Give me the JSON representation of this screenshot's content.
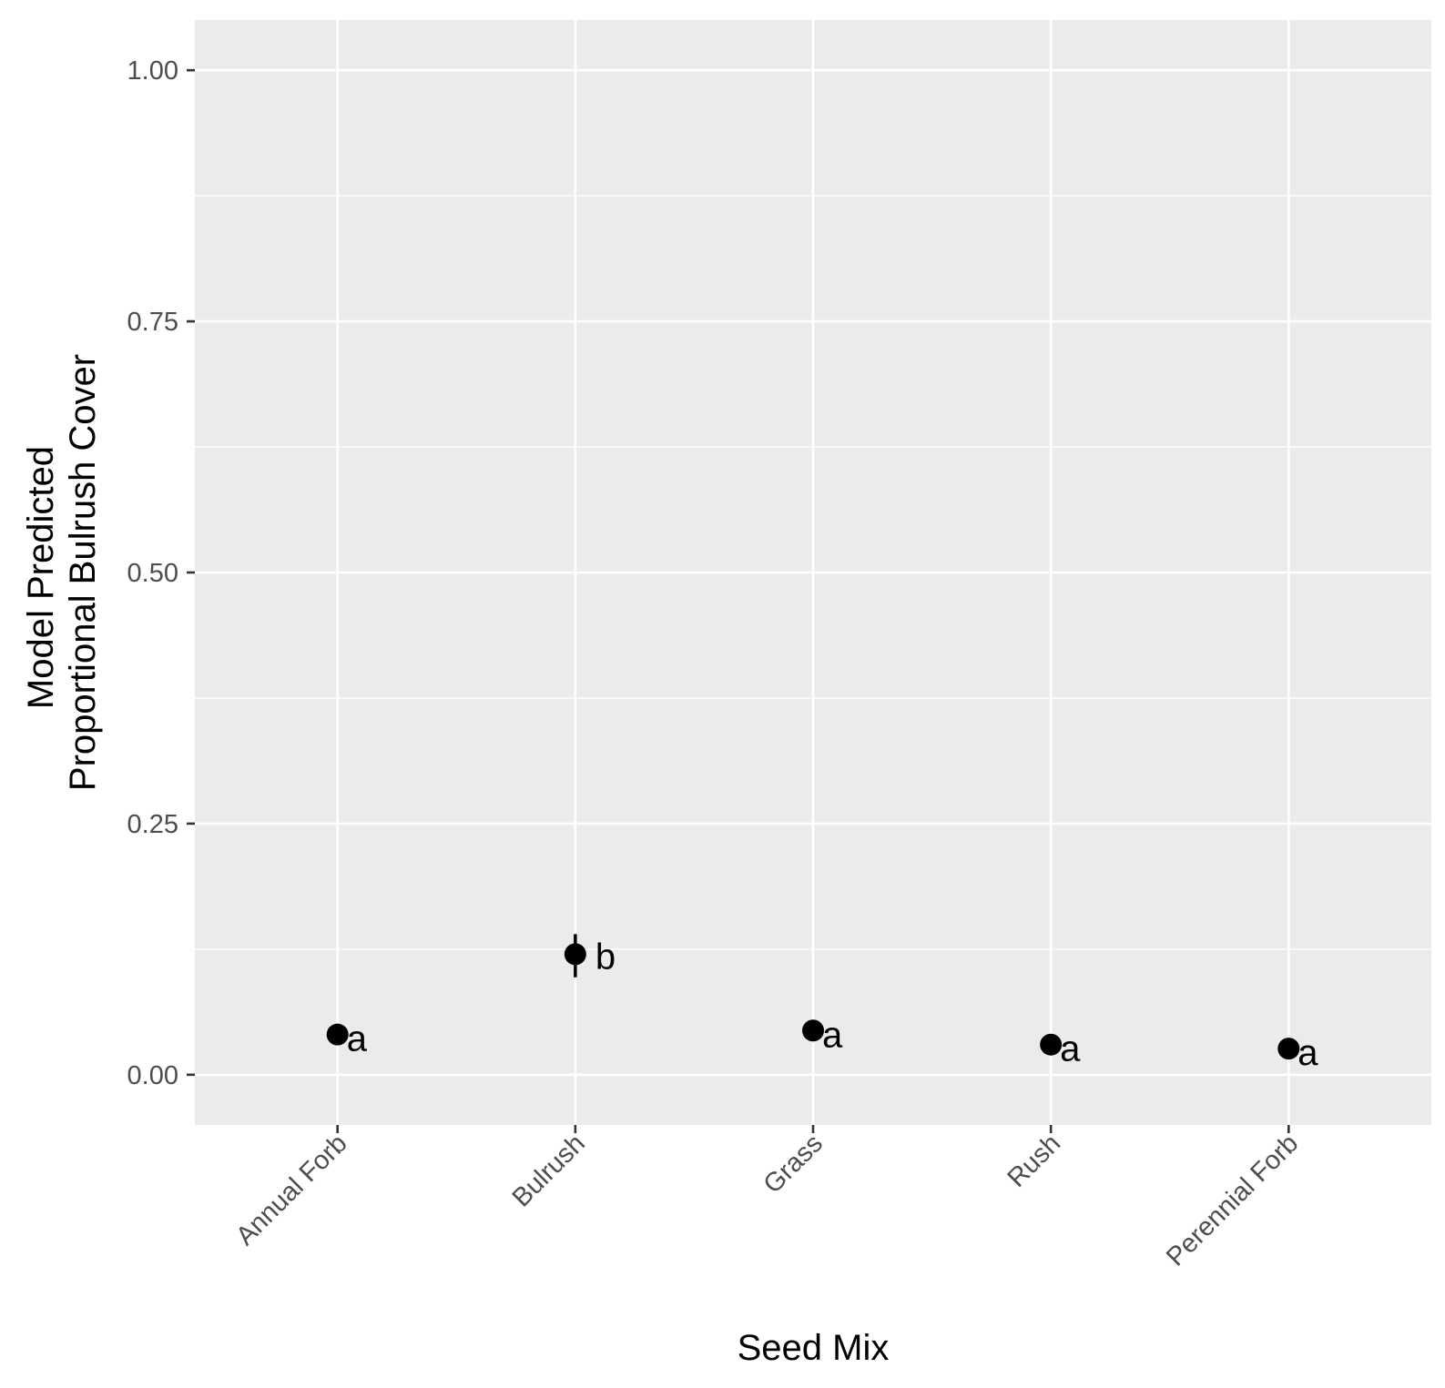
{
  "chart_data": {
    "type": "scatter",
    "title": "",
    "xlabel": "Seed Mix",
    "ylabel_lines": [
      "Model Predicted",
      "Proportional Bulrush Cover"
    ],
    "categories": [
      "Annual Forb",
      "Bulrush",
      "Grass",
      "Rush",
      "Perennial Forb"
    ],
    "values": [
      0.04,
      0.12,
      0.044,
      0.03,
      0.026
    ],
    "error_low": [
      0.04,
      0.097,
      0.044,
      0.03,
      0.026
    ],
    "error_high": [
      0.04,
      0.14,
      0.044,
      0.03,
      0.026
    ],
    "point_labels": [
      "a",
      "b",
      "a",
      "a",
      "a"
    ],
    "ylim": [
      -0.05,
      1.05
    ],
    "yticks": [
      0.0,
      0.25,
      0.5,
      0.75,
      1.0
    ],
    "ytick_labels": [
      "0.00",
      "0.25",
      "0.50",
      "0.75",
      "1.00"
    ],
    "grid": true,
    "legend": "none",
    "colors": {
      "panel_background": "#ebebeb",
      "grid_major": "#ffffff",
      "grid_minor": "#ffffff",
      "point": "#000000",
      "tick_text": "#4d4d4d",
      "title_text": "#000000"
    }
  }
}
